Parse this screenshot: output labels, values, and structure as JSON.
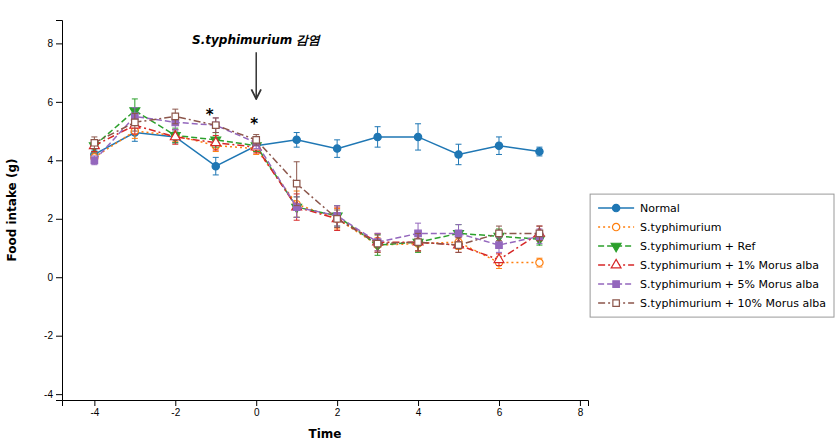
{
  "chart_data": {
    "type": "line",
    "xlabel": "Time",
    "ylabel": "Food intake (g)",
    "xlim": [
      -4.8,
      8.2
    ],
    "ylim": [
      -4.2,
      8.8
    ],
    "xticks": [
      -4,
      -2,
      0,
      2,
      4,
      6,
      8
    ],
    "yticks": [
      -4,
      -2,
      0,
      2,
      4,
      6,
      8
    ],
    "grid": false,
    "legend": "right",
    "series": [
      {
        "name": "Normal",
        "marker": "circle",
        "line_style": "solid",
        "x": [
          -4,
          -3,
          -2,
          -1,
          0,
          1,
          2,
          3,
          4,
          5,
          6,
          7
        ],
        "values": [
          4.2,
          4.95,
          4.8,
          3.8,
          4.5,
          4.7,
          4.4,
          4.8,
          4.8,
          4.2,
          4.5,
          4.3
        ],
        "errors": [
          0.15,
          0.3,
          0.2,
          0.3,
          0.2,
          0.25,
          0.3,
          0.35,
          0.45,
          0.35,
          0.3,
          0.15
        ]
      },
      {
        "name": "S.typhimurium",
        "marker": "circle-open",
        "line_style": "dotted",
        "x": [
          -4,
          -3,
          -2,
          -1,
          0,
          1,
          2,
          3,
          4,
          5,
          6,
          7
        ],
        "values": [
          4.1,
          5.0,
          4.85,
          4.5,
          4.4,
          2.5,
          2.0,
          1.1,
          1.15,
          1.2,
          0.5,
          0.5
        ],
        "errors": [
          0.15,
          0.25,
          0.2,
          0.2,
          0.2,
          0.45,
          0.35,
          0.25,
          0.25,
          0.25,
          0.2,
          0.15
        ]
      },
      {
        "name": "S.typhimurium + Ref",
        "marker": "triangle-down",
        "line_style": "dashed",
        "x": [
          -4,
          -3,
          -2,
          -1,
          0,
          1,
          2,
          3,
          4,
          5,
          6,
          7
        ],
        "values": [
          4.5,
          5.7,
          4.85,
          4.7,
          4.5,
          2.4,
          2.1,
          1.1,
          1.2,
          1.5,
          1.4,
          1.3
        ],
        "errors": [
          0.2,
          0.4,
          0.25,
          0.25,
          0.2,
          0.35,
          0.35,
          0.35,
          0.35,
          0.3,
          0.25,
          0.2
        ]
      },
      {
        "name": "S.typhimurium + 1% Morus alba",
        "marker": "triangle-up-open",
        "line_style": "dashdot",
        "x": [
          -4,
          -3,
          -2,
          -1,
          0,
          1,
          2,
          3,
          4,
          5,
          6,
          7
        ],
        "values": [
          4.5,
          5.2,
          4.8,
          4.6,
          4.45,
          2.4,
          2.0,
          1.2,
          1.2,
          1.1,
          0.6,
          1.5
        ],
        "errors": [
          0.2,
          0.3,
          0.25,
          0.25,
          0.2,
          0.45,
          0.4,
          0.3,
          0.3,
          0.25,
          0.2,
          0.25
        ]
      },
      {
        "name": "S.typhimurium + 5% Morus alba",
        "marker": "square",
        "line_style": "dashed",
        "x": [
          -4,
          -3,
          -2,
          -1,
          0,
          1,
          2,
          3,
          4,
          5,
          6,
          7
        ],
        "values": [
          4.0,
          5.5,
          5.3,
          5.2,
          4.6,
          2.4,
          2.1,
          1.2,
          1.5,
          1.5,
          1.1,
          1.4
        ],
        "errors": [
          0.15,
          0.3,
          0.25,
          0.25,
          0.2,
          0.35,
          0.35,
          0.3,
          0.35,
          0.3,
          0.25,
          0.25
        ]
      },
      {
        "name": "S.typhimurium + 10% Morus alba",
        "marker": "square-open",
        "line_style": "dashdot",
        "x": [
          -4,
          -3,
          -2,
          -1,
          0,
          1,
          2,
          3,
          4,
          5,
          6,
          7
        ],
        "values": [
          4.6,
          5.3,
          5.5,
          5.2,
          4.7,
          3.2,
          2.0,
          1.15,
          1.2,
          1.1,
          1.5,
          1.5
        ],
        "errors": [
          0.2,
          0.3,
          0.25,
          0.25,
          0.18,
          0.75,
          0.3,
          0.3,
          0.3,
          0.25,
          0.25,
          0.25
        ]
      }
    ],
    "annotations": [
      {
        "text": "*",
        "x": -1.15,
        "y": 5.3
      },
      {
        "text": "*",
        "x": -0.05,
        "y": 5.0
      },
      {
        "text": "S.typhimurium 감염",
        "x": 0.0,
        "y": 7.9
      }
    ],
    "arrows": [
      {
        "x": 0.0,
        "y_start": 7.7,
        "y_end": 6.1
      }
    ]
  }
}
